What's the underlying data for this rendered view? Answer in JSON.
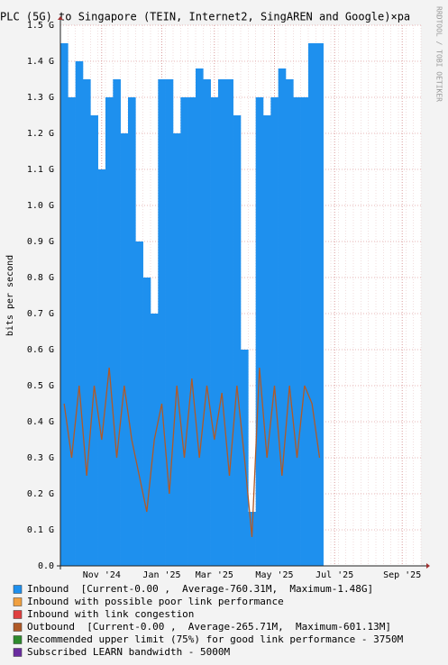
{
  "chart_data": {
    "type": "bar",
    "title": "PLC (5G) to Singapore (TEIN, Internet2, SingAREN and Google)×pa",
    "y_label": "bits per second",
    "watermark": "RRDTOOL / TOBI OETIKER",
    "categories": [
      null,
      null,
      null,
      null,
      null,
      "Nov '24",
      null,
      null,
      null,
      null,
      null,
      null,
      null,
      "Jan '25",
      null,
      null,
      null,
      null,
      null,
      null,
      "Mar '25",
      null,
      null,
      null,
      null,
      null,
      null,
      null,
      "May '25",
      null,
      null,
      null,
      null,
      null,
      null,
      null,
      "Jul '25",
      null,
      null,
      null,
      null,
      null,
      null,
      null,
      null,
      "Sep '25",
      null,
      null
    ],
    "series": [
      {
        "name": "Inbound  [Current-0.00 ,  Average-760.31M,  Maximum-1.48G]",
        "color": "#1e90ee",
        "values": [
          1.45,
          1.3,
          1.4,
          1.35,
          1.25,
          1.1,
          1.3,
          1.35,
          1.2,
          1.3,
          0.9,
          0.8,
          0.7,
          1.35,
          1.35,
          1.2,
          1.3,
          1.3,
          1.38,
          1.35,
          1.3,
          1.35,
          1.35,
          1.25,
          0.6,
          0.15,
          1.3,
          1.25,
          1.3,
          1.38,
          1.35,
          1.3,
          1.3,
          1.45,
          1.45,
          null,
          null,
          null,
          null,
          null,
          null,
          null,
          null,
          null,
          null,
          null,
          null,
          null
        ]
      },
      {
        "name": "Inbound with possible poor link performance",
        "color": "#f0a040"
      },
      {
        "name": "Inbound with link congestion",
        "color": "#e04040"
      },
      {
        "name": "Outbound  [Current-0.00 ,  Average-265.71M,  Maximum-601.13M]",
        "color": "#b05a28",
        "values": [
          0.45,
          0.3,
          0.5,
          0.25,
          0.5,
          0.35,
          0.55,
          0.3,
          0.5,
          0.35,
          0.25,
          0.15,
          0.35,
          0.45,
          0.2,
          0.5,
          0.3,
          0.52,
          0.3,
          0.5,
          0.35,
          0.48,
          0.25,
          0.5,
          0.3,
          0.08,
          0.55,
          0.3,
          0.5,
          0.25,
          0.5,
          0.3,
          0.5,
          0.45,
          0.3,
          null,
          null,
          null,
          null,
          null,
          null,
          null,
          null,
          null,
          null,
          null,
          null,
          null
        ]
      },
      {
        "name": "Recommended upper limit (75%) for good link performance - 3750M",
        "color": "#2e8b2e"
      },
      {
        "name": "Subscribed LEARN bandwidth - 5000M",
        "color": "#6a2ca0"
      }
    ],
    "ylim": [
      0,
      1.5
    ],
    "yticks": [
      {
        "value": 0,
        "label": "0.0"
      },
      {
        "value": 0.1,
        "label": "0.1 G"
      },
      {
        "value": 0.2,
        "label": "0.2 G"
      },
      {
        "value": 0.3,
        "label": "0.3 G"
      },
      {
        "value": 0.4,
        "label": "0.4 G"
      },
      {
        "value": 0.5,
        "label": "0.5 G"
      },
      {
        "value": 0.6,
        "label": "0.6 G"
      },
      {
        "value": 0.7,
        "label": "0.7 G"
      },
      {
        "value": 0.8,
        "label": "0.8 G"
      },
      {
        "value": 0.9,
        "label": "0.9 G"
      },
      {
        "value": 1.0,
        "label": "1.0 G"
      },
      {
        "value": 1.1,
        "label": "1.1 G"
      },
      {
        "value": 1.2,
        "label": "1.2 G"
      },
      {
        "value": 1.3,
        "label": "1.3 G"
      },
      {
        "value": 1.4,
        "label": "1.4 G"
      },
      {
        "value": 1.5,
        "label": "1.5 G"
      }
    ],
    "grid": true
  }
}
